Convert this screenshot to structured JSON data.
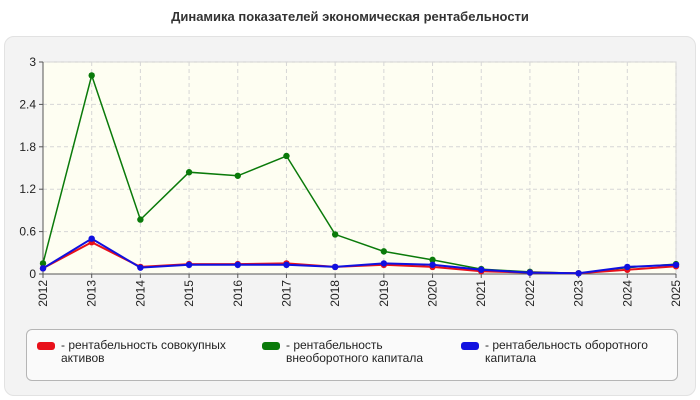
{
  "title": "Динамика показателей экономическая рентабельности",
  "chart_data": {
    "type": "line",
    "categories": [
      "2012",
      "2013",
      "2014",
      "2015",
      "2016",
      "2017",
      "2018",
      "2019",
      "2020",
      "2021",
      "2022",
      "2023",
      "2024",
      "2025"
    ],
    "y_ticks": [
      "0",
      "0.6",
      "1.2",
      "1.8",
      "2.4",
      "3"
    ],
    "ylim": [
      0,
      3
    ],
    "grid": true,
    "legend_position": "bottom",
    "series": [
      {
        "name": "- рентабельность совокупных активов",
        "color": "#e8101a",
        "values": [
          0.08,
          0.45,
          0.1,
          0.14,
          0.14,
          0.15,
          0.1,
          0.13,
          0.1,
          0.04,
          0.02,
          0.01,
          0.06,
          0.11
        ]
      },
      {
        "name": "- рентабельность внеоборотного капитала",
        "color": "#0a7a0a",
        "values": [
          0.15,
          2.81,
          0.77,
          1.44,
          1.39,
          1.67,
          0.56,
          0.32,
          0.2,
          0.07,
          0.03,
          0.01,
          0.09,
          0.14
        ]
      },
      {
        "name": "- рентабельность оборотного капитала",
        "color": "#1010e0",
        "values": [
          0.08,
          0.5,
          0.09,
          0.13,
          0.13,
          0.13,
          0.1,
          0.15,
          0.13,
          0.06,
          0.02,
          0.01,
          0.1,
          0.13
        ]
      }
    ]
  }
}
